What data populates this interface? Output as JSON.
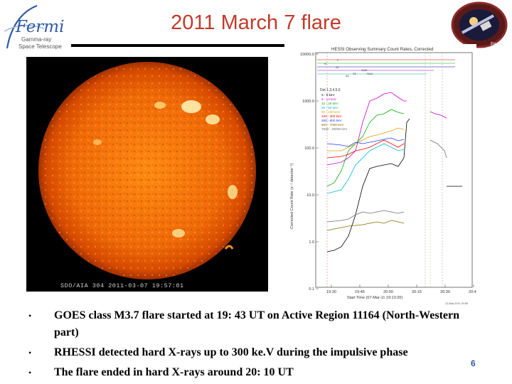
{
  "header": {
    "title": "2011 March 7 flare",
    "logo_left": {
      "wordmark": "Fermi",
      "subtitle_line1": "Gamma-ray",
      "subtitle_line2": "Space Telescope"
    },
    "logo_right": {
      "name": "fermi-mission-patch",
      "wordmark": "Fermi"
    }
  },
  "sun_image": {
    "caption": "SDO/AIA 304   2011-03-07 19:57:01"
  },
  "rhessi_plot": {
    "title": "HESSI Observing Summary Count Rates, Corrected",
    "y_axis_label": "Corrected Count Rate (s⁻¹ detector⁻¹)",
    "y_ticks": [
      "10000.0",
      "1000.0",
      "100.0",
      "10.0",
      "1.0",
      "0.1"
    ],
    "x_ticks": [
      "19:30",
      "19:45",
      "20:00",
      "20:15",
      "20:30",
      "20:45"
    ],
    "x_axis_label": "Start Time (07-Mar-11 19:13:20)",
    "footnote": "12-Mar-2011 20:55",
    "legend_header": "Det 1,3,4,5,6",
    "legend": [
      {
        "label": "3 - 6 keV",
        "color": "#000000"
      },
      {
        "label": "6 - 12 keV",
        "color": "#d000d0"
      },
      {
        "label": "12 - 25 keV",
        "color": "#00b000"
      },
      {
        "label": "25 - 50 keV",
        "color": "#00b8e0"
      },
      {
        "label": "50 - 100 keV",
        "color": "#e0a000"
      },
      {
        "label": "100 - 300 keV",
        "color": "#ff0000"
      },
      {
        "label": "300 - 800 keV",
        "color": "#2040ff"
      },
      {
        "label": "800 - 7000 keV",
        "color": "#8a6a00"
      },
      {
        "label": "7000 - 20000 keV",
        "color": "#707070"
      }
    ],
    "state_labels": [
      "F",
      "N",
      "A1",
      "SUN",
      "S1",
      "SAA",
      "A0"
    ]
  },
  "bullets": [
    "GOES class M3.7 flare started at 19: 43 UT on Active Region 11164 (North-Western part)",
    "RHESSI detected hard X-rays up to 300 ke.V during the impulsive phase",
    "The flare ended in hard X-rays around 20: 10 UT"
  ],
  "bullet_glyph": "•",
  "page_number": "6",
  "colors": {
    "title": "#c23b2b",
    "page_number": "#2f59a6",
    "logo_blue": "#2f59a6"
  }
}
